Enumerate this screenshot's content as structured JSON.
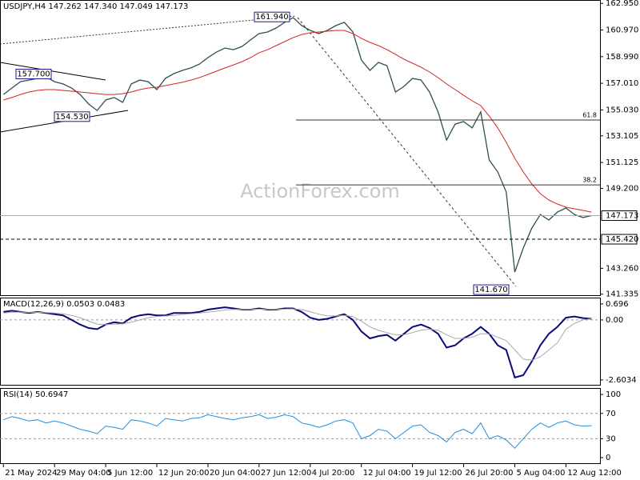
{
  "chart_data": [
    {
      "type": "line",
      "title": "USDJPY,H4  147.262 147.340 147.049 147.173",
      "watermark": "ActionForex.com",
      "ylim": [
        141.2,
        163.2
      ],
      "yticks": [
        {
          "value": 162.95,
          "label": "162.950"
        },
        {
          "value": 160.97,
          "label": "160.970"
        },
        {
          "value": 158.99,
          "label": "158.990"
        },
        {
          "value": 157.01,
          "label": "157.010"
        },
        {
          "value": 155.03,
          "label": "155.030"
        },
        153.105,
        151.125,
        {
          "value": 149.2,
          "label": "149.200"
        },
        {
          "value": 143.26,
          "label": "143.260"
        },
        141.335
      ],
      "series": [
        {
          "color": "#2f4f4f",
          "values": [
            156.18,
            156.66,
            157.13,
            157.25,
            157.37,
            157.49,
            157.13,
            156.96,
            156.66,
            156.18,
            155.47,
            154.99,
            155.77,
            155.95,
            155.59,
            156.96,
            157.25,
            157.13,
            156.54,
            157.37,
            157.73,
            157.97,
            158.15,
            158.44,
            158.92,
            159.33,
            159.63,
            159.51,
            159.75,
            160.23,
            160.7,
            160.82,
            161.12,
            161.54,
            161.89,
            161.3,
            160.94,
            160.7,
            160.94,
            161.3,
            161.54,
            160.82,
            158.74,
            157.97,
            158.56,
            158.32,
            156.36,
            156.78,
            157.37,
            157.25,
            156.36,
            154.88,
            152.79,
            153.98,
            154.16,
            153.69,
            154.88,
            151.31,
            150.42,
            148.93,
            142.98,
            144.77,
            146.25,
            147.26,
            146.85,
            147.44,
            147.74,
            147.26,
            147.03,
            147.173
          ]
        },
        {
          "color": "#d42424",
          "values": [
            155.77,
            155.95,
            156.18,
            156.36,
            156.48,
            156.54,
            156.54,
            156.48,
            156.42,
            156.36,
            156.3,
            156.24,
            156.18,
            156.18,
            156.24,
            156.36,
            156.54,
            156.66,
            156.72,
            156.84,
            156.96,
            157.08,
            157.25,
            157.43,
            157.67,
            157.91,
            158.15,
            158.38,
            158.62,
            158.92,
            159.28,
            159.51,
            159.81,
            160.11,
            160.41,
            160.64,
            160.76,
            160.82,
            160.88,
            160.94,
            160.94,
            160.7,
            160.35,
            160.05,
            159.81,
            159.51,
            159.16,
            158.8,
            158.5,
            158.21,
            157.85,
            157.43,
            156.96,
            156.54,
            156.12,
            155.71,
            155.35,
            154.58,
            153.69,
            152.62,
            151.43,
            150.42,
            149.52,
            148.81,
            148.33,
            148.04,
            147.8,
            147.68,
            147.56,
            147.44
          ]
        }
      ],
      "annotations": [
        {
          "value": 157.7,
          "label": "157.700"
        },
        {
          "value": 154.53,
          "label": "154.530"
        },
        {
          "value": 161.94,
          "label": "161.940"
        },
        {
          "value": 141.67,
          "label": "141.670"
        }
      ],
      "levels": [
        {
          "value": 154.28,
          "label": "61.8"
        },
        {
          "value": 149.46,
          "label": "38.2"
        }
      ],
      "last_price": 147.173,
      "support": {
        "value": 145.42,
        "label": "145.420"
      }
    },
    {
      "type": "line",
      "title": "MACD(12,26,9) 0.0503 0.0483",
      "ylim": [
        -2.85,
        0.97
      ],
      "yticks": [
        0.696,
        {
          "value": 0,
          "label": "0.00"
        },
        -2.6034
      ],
      "series": [
        {
          "color": "#0a0a7a",
          "values": [
            0.35,
            0.4,
            0.35,
            0.3,
            0.35,
            0.3,
            0.25,
            0.2,
            0.0,
            -0.2,
            -0.35,
            -0.4,
            -0.2,
            -0.1,
            -0.15,
            0.1,
            0.2,
            0.25,
            0.2,
            0.2,
            0.3,
            0.3,
            0.3,
            0.35,
            0.45,
            0.5,
            0.55,
            0.5,
            0.45,
            0.45,
            0.5,
            0.45,
            0.45,
            0.5,
            0.5,
            0.35,
            0.1,
            0.0,
            0.05,
            0.15,
            0.25,
            0.0,
            -0.5,
            -0.8,
            -0.7,
            -0.65,
            -0.9,
            -0.6,
            -0.3,
            -0.2,
            -0.35,
            -0.6,
            -1.2,
            -1.1,
            -0.8,
            -0.6,
            -0.3,
            -0.6,
            -1.1,
            -1.3,
            -2.5,
            -2.4,
            -1.8,
            -1.1,
            -0.6,
            -0.3,
            0.1,
            0.15,
            0.08,
            0.0503
          ]
        },
        {
          "color": "#a8a8a8",
          "values": [
            0.3,
            0.33,
            0.34,
            0.33,
            0.33,
            0.32,
            0.3,
            0.27,
            0.2,
            0.1,
            -0.05,
            -0.18,
            -0.2,
            -0.18,
            -0.17,
            -0.1,
            0.0,
            0.1,
            0.15,
            0.17,
            0.2,
            0.24,
            0.27,
            0.3,
            0.34,
            0.38,
            0.43,
            0.46,
            0.46,
            0.46,
            0.47,
            0.47,
            0.46,
            0.47,
            0.48,
            0.45,
            0.36,
            0.25,
            0.18,
            0.17,
            0.2,
            0.15,
            -0.05,
            -0.3,
            -0.45,
            -0.55,
            -0.65,
            -0.64,
            -0.55,
            -0.44,
            -0.4,
            -0.45,
            -0.65,
            -0.8,
            -0.8,
            -0.75,
            -0.6,
            -0.6,
            -0.75,
            -0.9,
            -1.3,
            -1.7,
            -1.75,
            -1.6,
            -1.3,
            -1.0,
            -0.4,
            -0.15,
            0.0,
            0.0483
          ]
        }
      ]
    },
    {
      "type": "line",
      "title": "RSI(14) 50.6947",
      "ylim": [
        -10,
        109
      ],
      "yticks": [
        100,
        70,
        30,
        0
      ],
      "xlim": [
        -0.4,
        70
      ],
      "xticks": [
        {
          "value": 0,
          "label": "21 May 2024"
        },
        {
          "value": 6,
          "label": "29 May 04:00"
        },
        {
          "value": 12,
          "label": "5 Jun 12:00"
        },
        {
          "value": 18,
          "label": "12 Jun 20:00"
        },
        {
          "value": 24,
          "label": "20 Jun 04:00"
        },
        {
          "value": 30,
          "label": "27 Jun 12:00"
        },
        {
          "value": 36,
          "label": "4 Jul 20:00"
        },
        {
          "value": 42,
          "label": "12 Jul 04:00"
        },
        {
          "value": 48,
          "label": "19 Jul 12:00"
        },
        {
          "value": 54,
          "label": "26 Jul 20:00"
        },
        {
          "value": 60,
          "label": "5 Aug 04:00"
        },
        {
          "value": 66,
          "label": "12 Aug 12:00"
        }
      ],
      "series": [
        {
          "color": "#1e8fe0",
          "values": [
            60,
            65,
            62,
            58,
            60,
            55,
            58,
            55,
            50,
            45,
            42,
            38,
            50,
            48,
            45,
            60,
            58,
            55,
            50,
            62,
            60,
            58,
            62,
            63,
            68,
            65,
            62,
            60,
            63,
            65,
            68,
            62,
            64,
            68,
            65,
            55,
            52,
            48,
            52,
            58,
            60,
            55,
            30,
            35,
            45,
            42,
            30,
            40,
            50,
            52,
            40,
            35,
            25,
            40,
            45,
            38,
            55,
            30,
            35,
            28,
            15,
            30,
            45,
            55,
            48,
            55,
            58,
            52,
            50,
            50.6947
          ]
        }
      ]
    }
  ]
}
